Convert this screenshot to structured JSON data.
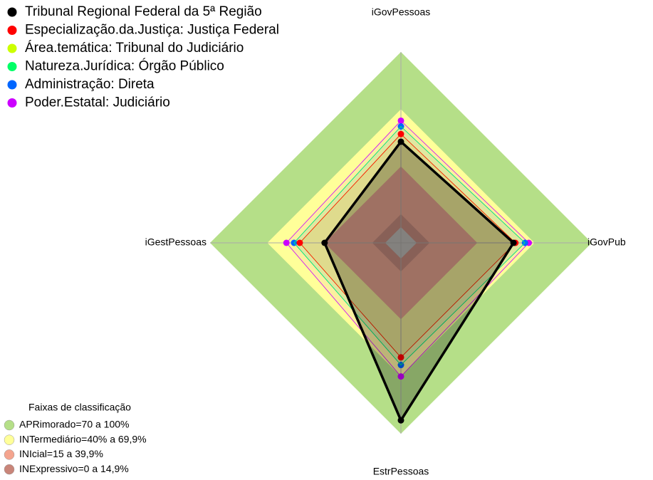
{
  "chart_data": {
    "type": "radar",
    "axes": [
      "iGovPessoas",
      "iGovPub",
      "EstrPessoas",
      "iGestPessoas"
    ],
    "rlim": [
      0,
      100
    ],
    "band_title": "Faixas de classificação",
    "bands": [
      {
        "label": "APRimorado=70 a 100%",
        "color": "#b5df88",
        "to": 100
      },
      {
        "label": "INTermediário=40% a 69,9%",
        "color": "#ffff99",
        "to": 70
      },
      {
        "label": "INIcial=15 a 39,9%",
        "color": "#f4a48e",
        "to": 40
      },
      {
        "label": "INExpressivo=0 a 14,9%",
        "color": "#c98579",
        "to": 15
      }
    ],
    "series": [
      {
        "name": "Tribunal Regional Federal da 5ª Região",
        "color": "#000000",
        "values": [
          53,
          59,
          93,
          40
        ]
      },
      {
        "name": "Especialização.da.Justiça: Justiça Federal",
        "color": "#ff0000",
        "values": [
          57,
          60,
          60,
          53
        ]
      },
      {
        "name": "Área.temática: Tribunal do Judiciário",
        "color": "#ccff00",
        "values": [
          57,
          60,
          60,
          53
        ]
      },
      {
        "name": "Natureza.Jurídica: Órgão Público",
        "color": "#00ff66",
        "values": [
          61,
          65,
          64,
          56
        ]
      },
      {
        "name": "Administração: Direta",
        "color": "#0066ff",
        "values": [
          61,
          65,
          64,
          56
        ]
      },
      {
        "name": "Poder.Estatal: Judiciário",
        "color": "#cc00ff",
        "values": [
          64,
          67,
          70,
          60
        ]
      }
    ]
  }
}
